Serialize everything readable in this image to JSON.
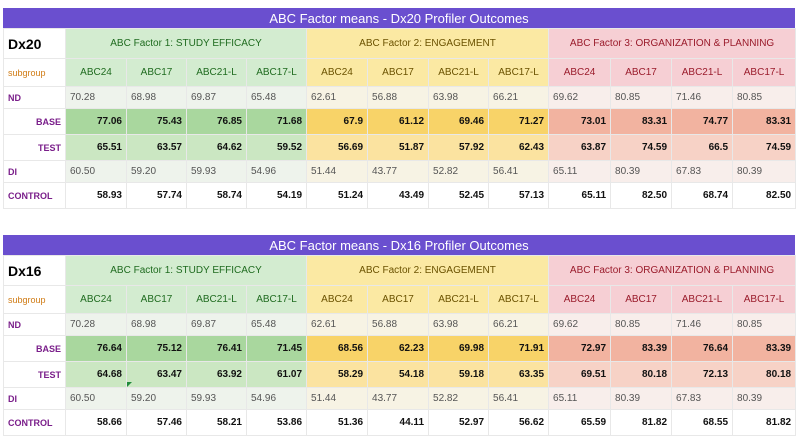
{
  "tables": [
    {
      "title": "ABC Factor means - Dx20 Profiler Outcomes",
      "id_label": "Dx20",
      "subgroup_label": "subgroup",
      "factors": [
        "ABC Factor 1: STUDY EFFICACY",
        "ABC Factor 2: ENGAGEMENT",
        "ABC Factor 3: ORGANIZATION & PLANNING"
      ],
      "subgroups": [
        "ABC24",
        "ABC17",
        "ABC21-L",
        "ABC17-L",
        "ABC24",
        "ABC17",
        "ABC21-L",
        "ABC17-L",
        "ABC24",
        "ABC17",
        "ABC21-L",
        "ABC17-L"
      ],
      "rows": [
        {
          "label": "ND",
          "values": [
            "70.28",
            "68.98",
            "69.87",
            "65.48",
            "62.61",
            "56.88",
            "63.98",
            "66.21",
            "69.62",
            "80.85",
            "71.46",
            "80.85"
          ]
        },
        {
          "label": "BASE",
          "values": [
            "77.06",
            "75.43",
            "76.85",
            "71.68",
            "67.9",
            "61.12",
            "69.46",
            "71.27",
            "73.01",
            "83.31",
            "74.77",
            "83.31"
          ]
        },
        {
          "label": "TEST",
          "values": [
            "65.51",
            "63.57",
            "64.62",
            "59.52",
            "56.69",
            "51.87",
            "57.92",
            "62.43",
            "63.87",
            "74.59",
            "66.5",
            "74.59"
          ]
        },
        {
          "label": "DI",
          "values": [
            "60.50",
            "59.20",
            "59.93",
            "54.96",
            "51.44",
            "43.77",
            "52.82",
            "56.41",
            "65.11",
            "80.39",
            "67.83",
            "80.39"
          ]
        },
        {
          "label": "CONTROL",
          "values": [
            "58.93",
            "57.74",
            "58.74",
            "54.19",
            "51.24",
            "43.49",
            "52.45",
            "57.13",
            "65.11",
            "82.50",
            "68.74",
            "82.50"
          ]
        }
      ]
    },
    {
      "title": "ABC Factor means - Dx16 Profiler Outcomes",
      "id_label": "Dx16",
      "subgroup_label": "subgroup",
      "factors": [
        "ABC Factor 1: STUDY EFFICACY",
        "ABC Factor 2: ENGAGEMENT",
        "ABC Factor 3: ORGANIZATION & PLANNING"
      ],
      "subgroups": [
        "ABC24",
        "ABC17",
        "ABC21-L",
        "ABC17-L",
        "ABC24",
        "ABC17",
        "ABC21-L",
        "ABC17-L",
        "ABC24",
        "ABC17",
        "ABC21-L",
        "ABC17-L"
      ],
      "rows": [
        {
          "label": "ND",
          "values": [
            "70.28",
            "68.98",
            "69.87",
            "65.48",
            "62.61",
            "56.88",
            "63.98",
            "66.21",
            "69.62",
            "80.85",
            "71.46",
            "80.85"
          ]
        },
        {
          "label": "BASE",
          "values": [
            "76.64",
            "75.12",
            "76.41",
            "71.45",
            "68.56",
            "62.23",
            "69.98",
            "71.91",
            "72.97",
            "83.39",
            "76.64",
            "83.39"
          ]
        },
        {
          "label": "TEST",
          "values": [
            "64.68",
            "63.47",
            "63.92",
            "61.07",
            "58.29",
            "54.18",
            "59.18",
            "63.35",
            "69.51",
            "80.18",
            "72.13",
            "80.18"
          ]
        },
        {
          "label": "DI",
          "values": [
            "60.50",
            "59.20",
            "59.93",
            "54.96",
            "51.44",
            "43.77",
            "52.82",
            "56.41",
            "65.11",
            "80.39",
            "67.83",
            "80.39"
          ]
        },
        {
          "label": "CONTROL",
          "values": [
            "58.66",
            "57.46",
            "58.21",
            "53.86",
            "51.36",
            "44.11",
            "52.97",
            "56.62",
            "65.59",
            "81.82",
            "68.55",
            "81.82"
          ]
        }
      ]
    }
  ],
  "colors": {
    "title_bar": "#6a4fcf",
    "factor1_bg": "#d3ecd0",
    "factor2_bg": "#fbe9a3",
    "factor3_bg": "#f6cfd4",
    "row_label": "#7a1e8a",
    "subgroup_label": "#d07b14"
  }
}
